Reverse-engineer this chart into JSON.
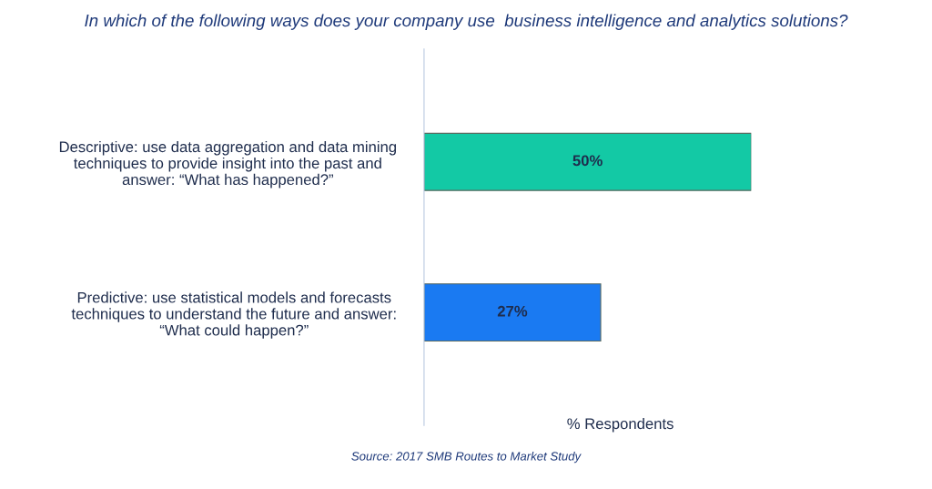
{
  "chart_data": {
    "type": "bar",
    "orientation": "horizontal",
    "title": "In which of the following ways does your company use  business intelligence and analytics solutions?",
    "categories": [
      "Descriptive: use data aggregation and data mining\ntechniques to provide insight into the past and\nanswer: “What has happened?”",
      "Predictive: use statistical models and forecasts\ntechniques to understand the future and answer:\n“What could happen?”"
    ],
    "values": [
      50,
      27
    ],
    "colors": [
      "#13c9a5",
      "#1a7af2"
    ],
    "value_labels": [
      "50%",
      "27%"
    ],
    "xlabel": "% Respondents",
    "annotations": [
      "Source: 2017 SMB Routes to Market Study"
    ],
    "grid": false,
    "tick_labels": "y"
  }
}
